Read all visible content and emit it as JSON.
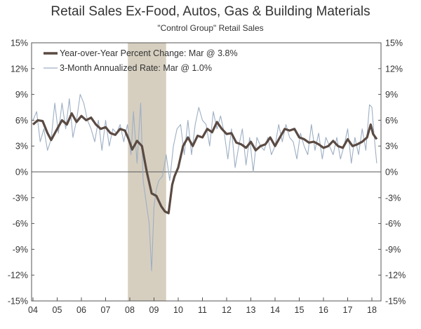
{
  "chart_data": {
    "type": "line",
    "title": "Retail Sales Ex-Food, Autos, Gas & Building Materials",
    "subtitle": "\"Control Group\" Retail Sales",
    "xlabel": "",
    "ylabel": "",
    "x_tick_labels": [
      "04",
      "05",
      "06",
      "07",
      "08",
      "09",
      "10",
      "11",
      "12",
      "13",
      "14",
      "15",
      "16",
      "17",
      "18"
    ],
    "y_ticks": [
      15,
      12,
      9,
      6,
      3,
      0,
      -3,
      -6,
      -9,
      -12,
      -15
    ],
    "y_tick_labels": [
      "15%",
      "12%",
      "9%",
      "6%",
      "3%",
      "0%",
      "-3%",
      "-6%",
      "-9%",
      "-12%",
      "-15%"
    ],
    "ylim": [
      -15,
      15
    ],
    "xlim": [
      2004.0,
      2018.4
    ],
    "grid": false,
    "legend_position": "top-left",
    "recession_shading": {
      "start": 2007.92,
      "end": 2009.5
    },
    "series": [
      {
        "name": "Year-over-Year Percent Change: Mar @ 3.8%",
        "style": "thick",
        "color": "#5a4a42",
        "x": [
          2004.0,
          2004.2,
          2004.4,
          2004.6,
          2004.75,
          2005.0,
          2005.2,
          2005.4,
          2005.6,
          2005.8,
          2006.0,
          2006.2,
          2006.4,
          2006.6,
          2006.8,
          2007.0,
          2007.2,
          2007.4,
          2007.6,
          2007.8,
          2007.95,
          2008.1,
          2008.3,
          2008.5,
          2008.7,
          2008.9,
          2009.1,
          2009.3,
          2009.45,
          2009.6,
          2009.75,
          2009.85,
          2010.0,
          2010.2,
          2010.4,
          2010.6,
          2010.8,
          2011.0,
          2011.2,
          2011.4,
          2011.6,
          2011.8,
          2012.0,
          2012.2,
          2012.4,
          2012.6,
          2012.8,
          2013.0,
          2013.2,
          2013.4,
          2013.6,
          2013.8,
          2014.0,
          2014.2,
          2014.4,
          2014.6,
          2014.8,
          2015.0,
          2015.2,
          2015.4,
          2015.6,
          2015.8,
          2016.0,
          2016.2,
          2016.4,
          2016.6,
          2016.8,
          2017.0,
          2017.2,
          2017.4,
          2017.6,
          2017.8,
          2017.95,
          2018.05,
          2018.2
        ],
        "values": [
          5.5,
          6.0,
          5.9,
          4.5,
          3.7,
          5.0,
          6.0,
          5.5,
          6.8,
          5.8,
          6.5,
          6.0,
          6.3,
          5.5,
          5.0,
          5.2,
          4.5,
          4.3,
          5.0,
          4.8,
          3.8,
          2.6,
          3.6,
          3.0,
          0.0,
          -2.5,
          -2.8,
          -4.0,
          -4.6,
          -4.8,
          -1.5,
          -0.5,
          0.5,
          3.0,
          4.0,
          3.0,
          4.2,
          4.0,
          5.0,
          4.6,
          5.8,
          5.0,
          4.4,
          4.5,
          3.4,
          3.2,
          2.8,
          3.5,
          2.5,
          3.0,
          3.2,
          4.0,
          3.0,
          4.0,
          5.0,
          4.8,
          5.0,
          4.0,
          3.8,
          3.4,
          3.5,
          3.2,
          2.8,
          3.0,
          3.6,
          3.0,
          2.8,
          3.8,
          3.0,
          3.2,
          3.5,
          4.0,
          5.5,
          4.4,
          3.8
        ]
      },
      {
        "name": "3-Month Annualized Rate: Mar @ 1.0%",
        "style": "thin",
        "color": "#9eafc4",
        "x": [
          2004.0,
          2004.15,
          2004.3,
          2004.45,
          2004.6,
          2004.75,
          2004.9,
          2005.05,
          2005.2,
          2005.35,
          2005.5,
          2005.65,
          2005.8,
          2005.95,
          2006.1,
          2006.25,
          2006.4,
          2006.55,
          2006.7,
          2006.85,
          2007.0,
          2007.15,
          2007.3,
          2007.45,
          2007.6,
          2007.75,
          2007.9,
          2008.05,
          2008.15,
          2008.3,
          2008.45,
          2008.55,
          2008.65,
          2008.8,
          2008.9,
          2009.0,
          2009.1,
          2009.2,
          2009.35,
          2009.5,
          2009.65,
          2009.8,
          2009.95,
          2010.1,
          2010.25,
          2010.4,
          2010.55,
          2010.7,
          2010.85,
          2011.0,
          2011.15,
          2011.3,
          2011.45,
          2011.6,
          2011.75,
          2011.9,
          2012.05,
          2012.2,
          2012.35,
          2012.5,
          2012.65,
          2012.8,
          2012.95,
          2013.1,
          2013.25,
          2013.4,
          2013.55,
          2013.7,
          2013.85,
          2014.0,
          2014.15,
          2014.3,
          2014.45,
          2014.6,
          2014.75,
          2014.9,
          2015.05,
          2015.2,
          2015.35,
          2015.5,
          2015.65,
          2015.8,
          2015.95,
          2016.1,
          2016.25,
          2016.4,
          2016.55,
          2016.7,
          2016.85,
          2017.0,
          2017.15,
          2017.3,
          2017.45,
          2017.6,
          2017.75,
          2017.9,
          2018.0,
          2018.1,
          2018.2
        ],
        "values": [
          6.0,
          7.0,
          3.5,
          5.0,
          2.5,
          3.8,
          8.0,
          4.5,
          8.0,
          5.0,
          8.5,
          4.0,
          6.0,
          9.0,
          8.0,
          6.0,
          5.0,
          3.5,
          6.0,
          2.5,
          6.0,
          3.0,
          5.0,
          4.5,
          5.5,
          3.5,
          5.5,
          2.0,
          7.0,
          1.0,
          8.0,
          -1.0,
          -3.0,
          -6.0,
          -11.5,
          -4.0,
          -2.0,
          -1.0,
          -0.5,
          2.0,
          -1.0,
          3.0,
          5.0,
          5.5,
          2.0,
          6.0,
          2.0,
          5.5,
          7.5,
          6.0,
          5.5,
          3.0,
          7.0,
          5.0,
          6.5,
          4.5,
          1.5,
          5.0,
          0.5,
          3.0,
          5.0,
          0.8,
          4.0,
          0.0,
          4.0,
          3.0,
          2.5,
          4.0,
          2.0,
          3.0,
          5.5,
          3.5,
          5.5,
          4.0,
          3.5,
          1.5,
          4.5,
          3.0,
          2.0,
          5.5,
          2.5,
          4.5,
          1.5,
          4.0,
          3.0,
          2.0,
          4.0,
          1.5,
          3.0,
          5.0,
          1.0,
          4.0,
          2.0,
          5.0,
          2.5,
          7.8,
          7.5,
          4.0,
          1.0
        ]
      }
    ]
  }
}
